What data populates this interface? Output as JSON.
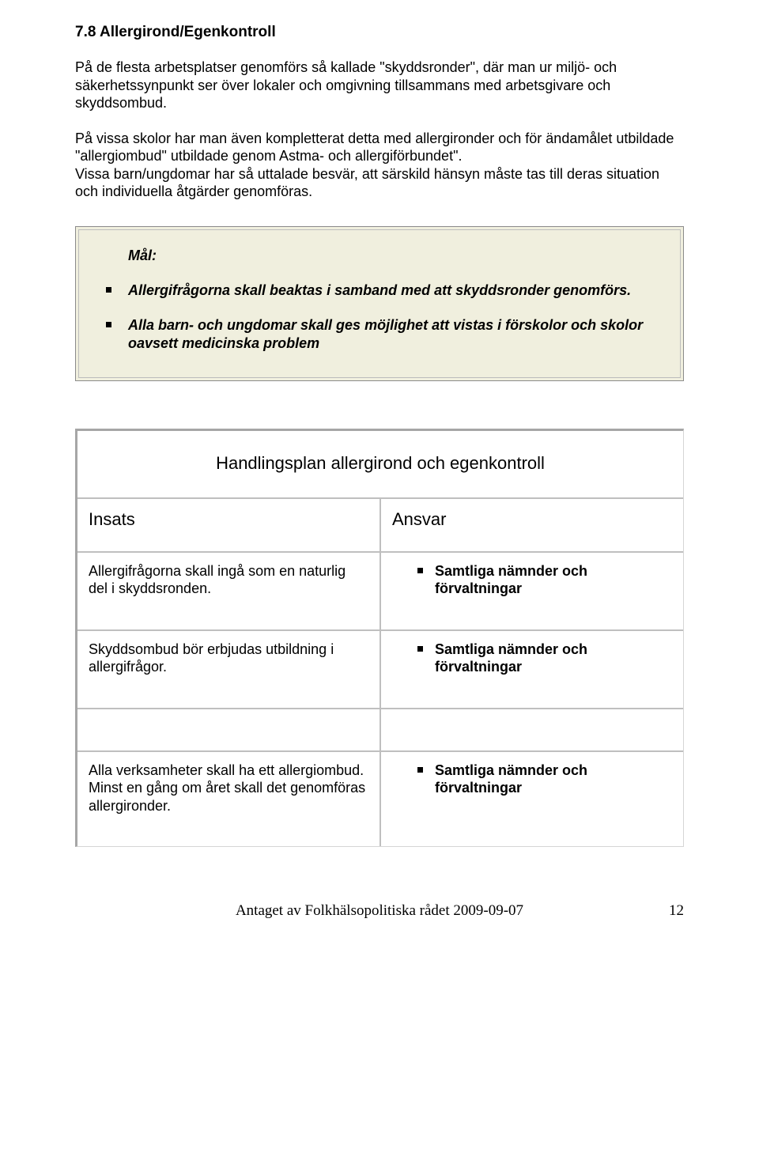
{
  "heading": "7.8 Allergirond/Egenkontroll",
  "para1": "På de flesta arbetsplatser genomförs så kallade \"skyddsronder\", där man ur miljö- och säkerhetssynpunkt ser över lokaler och omgivning tillsammans med arbetsgivare och skyddsombud.",
  "para2": "På vissa skolor har man även kompletterat detta med allergironder och för ändamålet utbildade \"allergiombud\" utbildade genom Astma- och allergiförbundet\".",
  "para3": "Vissa barn/ungdomar har så uttalade besvär, att särskild hänsyn måste tas till deras situation och individuella åtgärder genomföras.",
  "goal": {
    "label": "Mål:",
    "items": [
      "Allergifrågorna skall beaktas i samband med att skyddsronder genomförs.",
      "Alla barn- och ungdomar skall ges möjlighet att vistas i förskolor och skolor oavsett medicinska problem"
    ]
  },
  "table": {
    "title": "Handlingsplan allergirond och egenkontroll",
    "col1": "Insats",
    "col2": "Ansvar",
    "rows": [
      {
        "insats": "Allergifrågorna skall ingå som en naturlig del i skyddsronden.",
        "ansvar": "Samtliga nämnder och förvaltningar"
      },
      {
        "insats": "Skyddsombud bör erbjudas utbildning i allergifrågor.",
        "ansvar": "Samtliga nämnder och förvaltningar"
      },
      {
        "insats": "Alla verksamheter skall ha ett allergiombud. Minst en gång om året skall det genomföras allergironder.",
        "ansvar": "Samtliga nämnder och förvaltningar"
      }
    ]
  },
  "footer": {
    "text": "Antaget av Folkhälsopolitiska rådet 2009-09-07",
    "page": "12"
  },
  "colors": {
    "goal_box_bg": "#f0efde",
    "goal_border_outer": "#8b8b8b",
    "goal_border_inner": "#bdbdbd",
    "table_border": "#bfbfbf",
    "table_outer_dark": "#a6a6a6"
  }
}
